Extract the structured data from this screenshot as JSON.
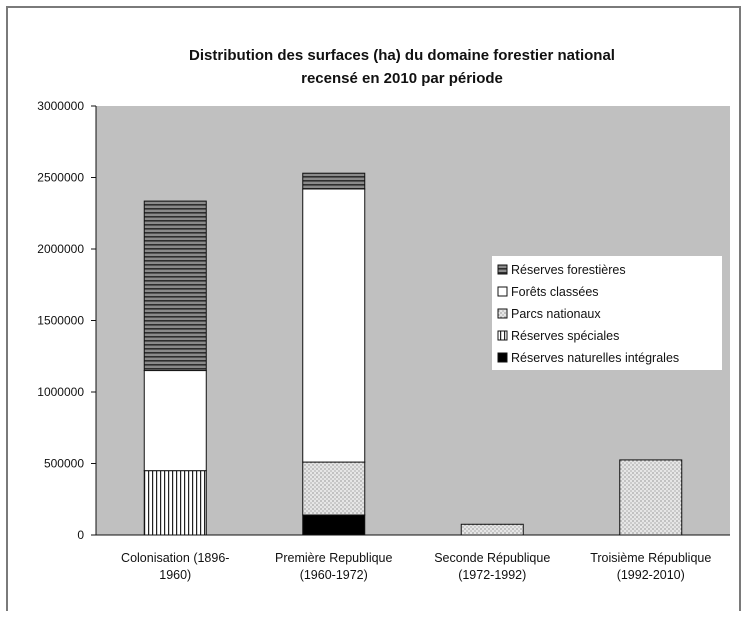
{
  "chart_data": {
    "type": "bar",
    "stacked": true,
    "title_lines": [
      "Distribution des surfaces (ha) du domaine forestier national",
      "recensé en 2010 par période"
    ],
    "categories": [
      [
        "Colonisation (1896-",
        "1960)"
      ],
      [
        "Première Republique",
        "(1960-1972)"
      ],
      [
        "Seconde République",
        "(1972-1992)"
      ],
      [
        "Troisième République",
        "(1992-2010)"
      ]
    ],
    "ylim": [
      0,
      3000000
    ],
    "yticks": [
      "0",
      "500000",
      "1000000",
      "1500000",
      "2000000",
      "2500000",
      "3000000"
    ],
    "grid": false,
    "plot_background": "#c0c0c0",
    "legend_position": "right",
    "series": [
      {
        "name": "Réserves naturelles intégrales",
        "pattern": "solid",
        "values": [
          0,
          140000,
          0,
          0
        ]
      },
      {
        "name": "Réserves spéciales",
        "pattern": "vertical",
        "values": [
          450000,
          0,
          0,
          0
        ]
      },
      {
        "name": "Parcs nationaux",
        "pattern": "dots",
        "values": [
          0,
          370000,
          75000,
          525000
        ]
      },
      {
        "name": "Forêts classées",
        "pattern": "white",
        "values": [
          700000,
          1910000,
          0,
          0
        ]
      },
      {
        "name": "Réserves forestières",
        "pattern": "horizontal",
        "values": [
          1185000,
          110000,
          0,
          0
        ]
      }
    ],
    "legend_order": [
      "Réserves forestières",
      "Forêts classées",
      "Parcs nationaux",
      "Réserves spéciales",
      "Réserves naturelles intégrales"
    ]
  }
}
